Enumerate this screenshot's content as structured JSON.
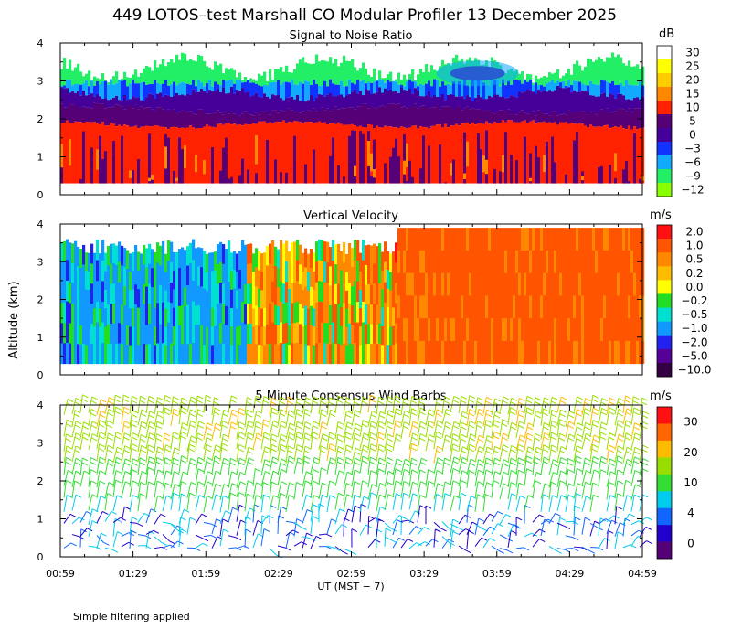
{
  "title": "449 LOTOS–test Marshall CO Modular Profiler 13 December 2025",
  "note": "Simple filtering applied",
  "y_axis_label": "Altitude (km)",
  "x_axis": {
    "label": "UT  (MST − 7)",
    "ticks": [
      "00:59",
      "01:29",
      "01:59",
      "02:29",
      "02:59",
      "03:29",
      "03:59",
      "04:29",
      "04:59"
    ],
    "range_hours": [
      0.983,
      4.983
    ]
  },
  "chart_data": [
    {
      "type": "heatmap",
      "title": "Signal to Noise Ratio",
      "unit": "dB",
      "ylabel": "Altitude (km)",
      "ylim": [
        0,
        4
      ],
      "yticks": [
        "0",
        "1",
        "2",
        "3",
        "4"
      ],
      "colorbar": {
        "labels": [
          "30",
          "25",
          "20",
          "15",
          "10",
          "5",
          "0",
          "−3",
          "−6",
          "−9",
          "−12"
        ],
        "colors": [
          "#ffffff",
          "#ffff00",
          "#ffcc00",
          "#ff8800",
          "#ff2200",
          "#550077",
          "#440099",
          "#1133ff",
          "#11aaff",
          "#22ee66",
          "#88ff00"
        ]
      },
      "layers": [
        {
          "from_km": 0.3,
          "to_km": 1.9,
          "value_db": 12,
          "description_color": "red with dark purple streaks"
        },
        {
          "from_km": 1.9,
          "to_km": 2.3,
          "value_db": 3
        },
        {
          "from_km": 2.3,
          "to_km": 2.7,
          "value_db": -5
        },
        {
          "from_km": 2.7,
          "to_km": 3.8,
          "value_db": -10
        }
      ]
    },
    {
      "type": "heatmap",
      "title": "Vertical Velocity",
      "unit": "m/s",
      "ylabel": "Altitude (km)",
      "ylim": [
        0,
        4
      ],
      "yticks": [
        "0",
        "1",
        "2",
        "3",
        "4"
      ],
      "colorbar": {
        "labels": [
          "2.0",
          "1.0",
          "0.5",
          "0.2",
          "0.0",
          "−0.2",
          "−0.5",
          "−1.0",
          "−2.0",
          "−5.0",
          "−10.0"
        ],
        "colors": [
          "#ff1111",
          "#ff5500",
          "#ff8800",
          "#ffbb00",
          "#ffff00",
          "#22dd22",
          "#00e0d0",
          "#1199ff",
          "#2222ee",
          "#550099",
          "#330044"
        ]
      },
      "segments": [
        {
          "from_time": "00:59",
          "to_time": "02:14",
          "dominant_value": -1.0
        },
        {
          "from_time": "02:14",
          "to_time": "03:14",
          "dominant_value": 0.3
        },
        {
          "from_time": "03:14",
          "to_time": "04:59",
          "dominant_value": 1.0
        }
      ]
    },
    {
      "type": "scatter",
      "title": "5 Minute Consensus Wind Barbs",
      "unit": "m/s",
      "ylabel": "Altitude (km)",
      "ylim": [
        0,
        4
      ],
      "yticks": [
        "0",
        "1",
        "2",
        "3",
        "4"
      ],
      "colorbar": {
        "labels": [
          "30",
          "20",
          "10",
          "4",
          "0"
        ],
        "colors": [
          "#ff1111",
          "#ff6600",
          "#ffbb00",
          "#99dd00",
          "#33dd33",
          "#00ccee",
          "#1166ff",
          "#2200cc",
          "#550077"
        ]
      },
      "wind_regime": [
        {
          "from_km": 0.1,
          "to_km": 1.0,
          "speed_ms": 4
        },
        {
          "from_km": 1.0,
          "to_km": 2.0,
          "speed_ms": 7
        },
        {
          "from_km": 2.0,
          "to_km": 4.0,
          "speed_ms": 12
        }
      ]
    }
  ]
}
